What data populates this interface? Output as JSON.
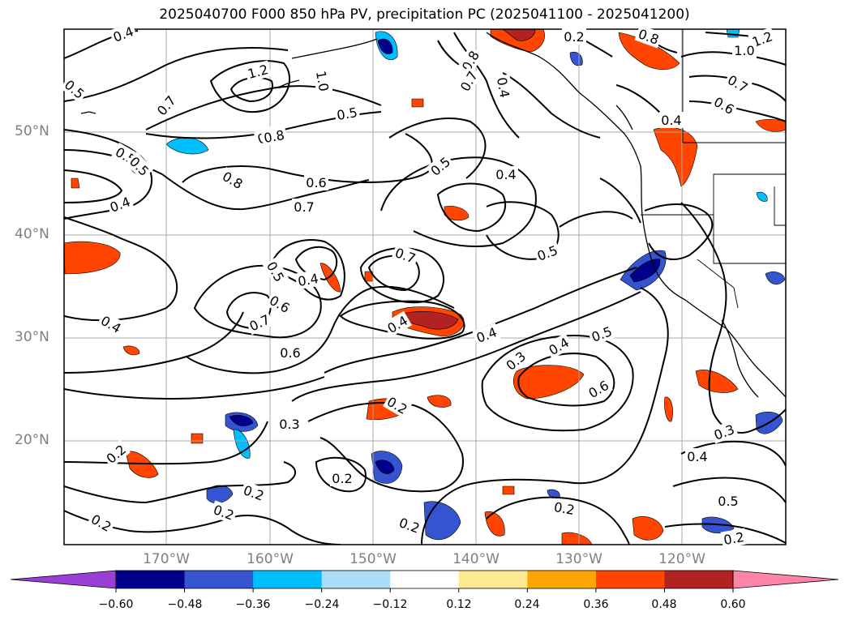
{
  "title": "2025040700 F000 850 hPa PV, precipitation PC (2025041100 - 2025041200)",
  "lat_labels": [
    "50°N",
    "40°N",
    "30°N",
    "20°N"
  ],
  "lon_labels": [
    "170°W",
    "160°W",
    "150°W",
    "140°W",
    "130°W",
    "120°W"
  ],
  "colorbar": {
    "ticks": [
      "−0.60",
      "−0.48",
      "−0.36",
      "−0.24",
      "−0.12",
      "0.12",
      "0.24",
      "0.36",
      "0.48",
      "0.60"
    ],
    "colors": [
      "#9a3fd6",
      "#00008b",
      "#3555d0",
      "#00bfff",
      "#abdcf8",
      "#ffffff",
      "#fde98f",
      "#ffa500",
      "#ff4500",
      "#b22222",
      "#ff85a8"
    ]
  },
  "contour_labels": [
    {
      "t": "0.4"
    },
    {
      "t": "0.5"
    },
    {
      "t": "1.2"
    },
    {
      "t": "1.0"
    },
    {
      "t": "0.7"
    },
    {
      "t": "0.8"
    },
    {
      "t": "0.6"
    },
    {
      "t": "0.5"
    },
    {
      "t": "0.8"
    },
    {
      "t": "0.7"
    },
    {
      "t": "0.4"
    },
    {
      "t": "0.2"
    },
    {
      "t": "0.8"
    },
    {
      "t": "0.5"
    },
    {
      "t": "1.2"
    },
    {
      "t": "1.0"
    },
    {
      "t": "0.7"
    },
    {
      "t": "0.6"
    },
    {
      "t": "0.4"
    },
    {
      "t": "0.5"
    },
    {
      "t": "0.4"
    },
    {
      "t": "0.8"
    },
    {
      "t": "0.6"
    },
    {
      "t": "0.7"
    },
    {
      "t": "0.5"
    },
    {
      "t": "0.4"
    },
    {
      "t": "0.7"
    },
    {
      "t": "0.5"
    },
    {
      "t": "0.4"
    },
    {
      "t": "0.6"
    },
    {
      "t": "0.7"
    },
    {
      "t": "0.4"
    },
    {
      "t": "0.4"
    },
    {
      "t": "0.4"
    },
    {
      "t": "0.6"
    },
    {
      "t": "0.5"
    },
    {
      "t": "0.2"
    },
    {
      "t": "0.3"
    },
    {
      "t": "0.4"
    },
    {
      "t": "0.5"
    },
    {
      "t": "0.6"
    },
    {
      "t": "0.2"
    },
    {
      "t": "0.3"
    },
    {
      "t": "0.2"
    },
    {
      "t": "0.2"
    },
    {
      "t": "0.2"
    },
    {
      "t": "0.2"
    },
    {
      "t": "0.2"
    },
    {
      "t": "0.2"
    },
    {
      "t": "0.3"
    },
    {
      "t": "0.4"
    },
    {
      "t": "0.5"
    },
    {
      "t": "0.2"
    }
  ]
}
